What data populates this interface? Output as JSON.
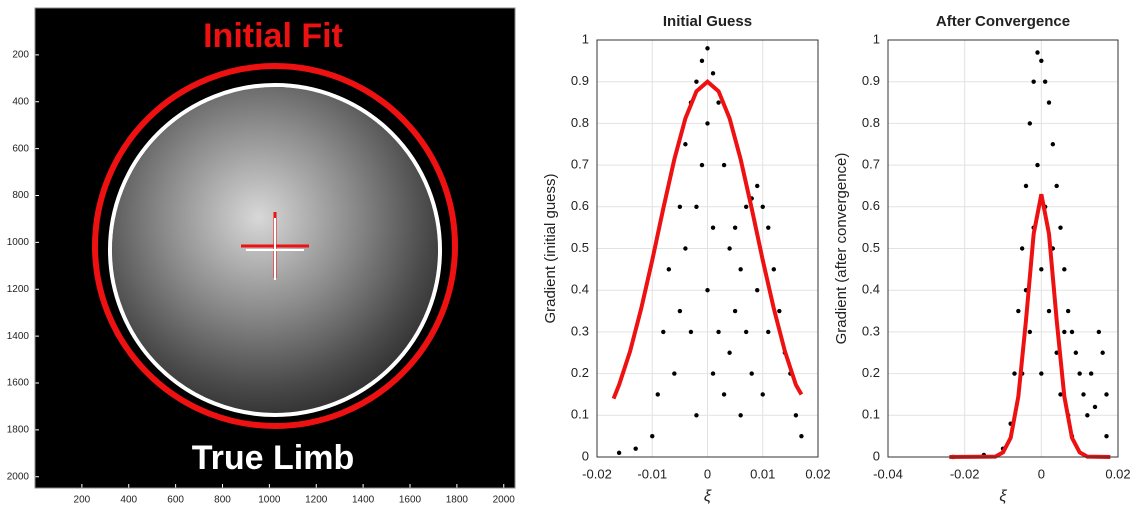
{
  "chart_data": [
    {
      "type": "image",
      "annotations": [
        "Initial Fit",
        "True Limb"
      ],
      "xlim": [
        0,
        2048
      ],
      "ylim": [
        0,
        2048
      ],
      "xticks": [
        200,
        400,
        600,
        800,
        1000,
        1200,
        1400,
        1600,
        1800,
        2000
      ],
      "yticks": [
        200,
        400,
        600,
        800,
        1000,
        1200,
        1400,
        1600,
        1800,
        2000
      ],
      "colors": {
        "initial_fit": "#ee1111",
        "true_limb": "#ffffff"
      }
    },
    {
      "type": "scatter",
      "title": "Initial Guess",
      "x_label": "ξ",
      "y_label": "Gradient (initial guess)",
      "xlim": [
        -0.02,
        0.02
      ],
      "ylim": [
        0,
        1
      ],
      "xticks": [
        -0.02,
        -0.01,
        0,
        0.01,
        0.02
      ],
      "yticks": [
        0,
        0.1,
        0.2,
        0.3,
        0.4,
        0.5,
        0.6,
        0.7,
        0.8,
        0.9,
        1
      ],
      "grid": true,
      "series": [
        {
          "type": "scatter",
          "color": "#000000",
          "x": [
            -0.016,
            -0.013,
            -0.01,
            -0.009,
            -0.008,
            -0.007,
            -0.006,
            -0.005,
            -0.005,
            -0.004,
            -0.004,
            -0.003,
            -0.003,
            -0.002,
            -0.002,
            -0.001,
            -0.001,
            0,
            0,
            0,
            0.001,
            0.001,
            0.002,
            0.002,
            0.003,
            0.003,
            0.004,
            0.004,
            0.005,
            0.005,
            0.006,
            0.006,
            0.007,
            0.007,
            0.008,
            0.008,
            0.009,
            0.009,
            0.01,
            0.01,
            0.011,
            0.011,
            0.012,
            0.013,
            0.014,
            0.015,
            0.016,
            0.017,
            -0.002,
            0.001
          ],
          "y": [
            0.01,
            0.02,
            0.05,
            0.15,
            0.3,
            0.45,
            0.2,
            0.6,
            0.35,
            0.75,
            0.5,
            0.85,
            0.3,
            0.9,
            0.6,
            0.95,
            0.7,
            0.98,
            0.8,
            0.4,
            0.92,
            0.55,
            0.85,
            0.3,
            0.7,
            0.15,
            0.5,
            0.25,
            0.35,
            0.55,
            0.45,
            0.1,
            0.6,
            0.3,
            0.62,
            0.2,
            0.65,
            0.4,
            0.6,
            0.15,
            0.55,
            0.3,
            0.45,
            0.35,
            0.25,
            0.2,
            0.1,
            0.05,
            0.1,
            0.2
          ]
        },
        {
          "type": "line",
          "color": "#ee1111",
          "x": [
            -0.017,
            -0.016,
            -0.014,
            -0.012,
            -0.01,
            -0.008,
            -0.006,
            -0.004,
            -0.002,
            0,
            0.002,
            0.004,
            0.006,
            0.008,
            0.01,
            0.012,
            0.014,
            0.016,
            0.017
          ],
          "y": [
            0.14,
            0.173,
            0.254,
            0.356,
            0.472,
            0.596,
            0.714,
            0.812,
            0.877,
            0.9,
            0.877,
            0.812,
            0.714,
            0.596,
            0.472,
            0.356,
            0.254,
            0.173,
            0.15
          ]
        }
      ]
    },
    {
      "type": "scatter",
      "title": "After Convergence",
      "x_label": "ξ",
      "y_label": "Gradient (after convergence)",
      "xlim": [
        -0.04,
        0.02
      ],
      "ylim": [
        0,
        1
      ],
      "xticks": [
        -0.04,
        -0.02,
        0,
        0.02
      ],
      "yticks": [
        0,
        0.1,
        0.2,
        0.3,
        0.4,
        0.5,
        0.6,
        0.7,
        0.8,
        0.9,
        1
      ],
      "grid": true,
      "series": [
        {
          "type": "scatter",
          "color": "#000000",
          "x": [
            -0.023,
            -0.015,
            -0.01,
            -0.008,
            -0.007,
            -0.006,
            -0.005,
            -0.005,
            -0.004,
            -0.004,
            -0.003,
            -0.003,
            -0.002,
            -0.002,
            -0.001,
            -0.001,
            0,
            0,
            0,
            0.001,
            0.001,
            0.002,
            0.002,
            0.003,
            0.003,
            0.004,
            0.004,
            0.005,
            0.005,
            0.006,
            0.006,
            0.007,
            0.007,
            0.008,
            0.008,
            0.009,
            0.01,
            0.011,
            0.012,
            0.013,
            0.014,
            0.015,
            0.016,
            0.017,
            0.017
          ],
          "y": [
            0,
            0.005,
            0.02,
            0.08,
            0.2,
            0.35,
            0.5,
            0.2,
            0.65,
            0.4,
            0.8,
            0.3,
            0.9,
            0.55,
            0.97,
            0.7,
            0.95,
            0.45,
            0.2,
            0.9,
            0.6,
            0.85,
            0.35,
            0.75,
            0.5,
            0.65,
            0.25,
            0.55,
            0.15,
            0.45,
            0.3,
            0.35,
            0.1,
            0.3,
            0.05,
            0.25,
            0.2,
            0.15,
            0.1,
            0.2,
            0.12,
            0.3,
            0.25,
            0.15,
            0.05
          ]
        },
        {
          "type": "line",
          "color": "#ee1111",
          "x": [
            -0.024,
            -0.012,
            -0.01,
            -0.008,
            -0.006,
            -0.004,
            -0.002,
            0,
            0.002,
            0.004,
            0.006,
            0.008,
            0.01,
            0.012,
            0.018
          ],
          "y": [
            0,
            0.001,
            0.011,
            0.046,
            0.145,
            0.328,
            0.535,
            0.63,
            0.535,
            0.328,
            0.145,
            0.046,
            0.011,
            0.001,
            0
          ]
        }
      ]
    }
  ]
}
